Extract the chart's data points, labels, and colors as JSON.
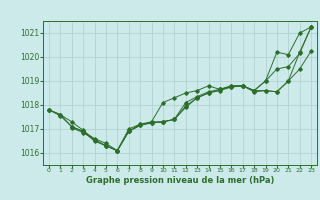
{
  "background_color": "#cceaea",
  "grid_color": "#b0cccc",
  "line_color": "#2d6e2d",
  "title": "Graphe pression niveau de la mer (hPa)",
  "xlim": [
    -0.5,
    23.5
  ],
  "ylim": [
    1015.5,
    1021.5
  ],
  "yticks": [
    1016,
    1017,
    1018,
    1019,
    1020,
    1021
  ],
  "xticks": [
    0,
    1,
    2,
    3,
    4,
    5,
    6,
    7,
    8,
    9,
    10,
    11,
    12,
    13,
    14,
    15,
    16,
    17,
    18,
    19,
    20,
    21,
    22,
    23
  ],
  "series": [
    {
      "x": [
        0,
        1,
        2,
        3,
        4,
        5,
        6,
        7,
        8,
        9,
        10,
        11,
        12,
        13,
        14,
        15,
        16,
        17,
        18,
        19,
        20,
        21,
        22,
        23
      ],
      "y": [
        1017.8,
        1017.55,
        1017.1,
        1016.9,
        1016.5,
        1016.3,
        1016.1,
        1016.9,
        1017.2,
        1017.3,
        1018.1,
        1018.3,
        1018.5,
        1018.6,
        1018.8,
        1018.65,
        1018.8,
        1018.8,
        1018.6,
        1019.0,
        1020.2,
        1020.1,
        1021.0,
        1021.25
      ]
    },
    {
      "x": [
        0,
        1,
        2,
        3,
        4,
        5,
        6,
        7,
        8,
        9,
        10,
        11,
        12,
        13,
        14,
        15,
        16,
        17,
        18,
        19,
        20,
        21,
        22,
        23
      ],
      "y": [
        1017.8,
        1017.6,
        1017.3,
        1016.95,
        1016.55,
        1016.3,
        1016.1,
        1016.9,
        1017.15,
        1017.3,
        1017.3,
        1017.4,
        1018.1,
        1018.35,
        1018.55,
        1018.65,
        1018.8,
        1018.8,
        1018.6,
        1019.0,
        1019.5,
        1019.6,
        1020.15,
        1021.25
      ]
    },
    {
      "x": [
        0,
        1,
        2,
        3,
        4,
        5,
        6,
        7,
        8,
        9,
        10,
        11,
        12,
        13,
        14,
        15,
        16,
        17,
        18,
        19,
        20,
        21,
        22,
        23
      ],
      "y": [
        1017.8,
        1017.6,
        1017.1,
        1016.9,
        1016.6,
        1016.4,
        1016.1,
        1016.9,
        1017.15,
        1017.25,
        1017.3,
        1017.4,
        1017.95,
        1018.3,
        1018.5,
        1018.65,
        1018.75,
        1018.8,
        1018.6,
        1018.6,
        1018.55,
        1019.0,
        1020.2,
        1021.25
      ]
    },
    {
      "x": [
        2,
        3,
        4,
        5,
        6,
        7,
        8,
        9,
        10,
        11,
        12,
        13,
        14,
        15,
        16,
        17,
        18,
        19,
        20,
        21,
        22,
        23
      ],
      "y": [
        1017.05,
        1016.85,
        1016.55,
        1016.3,
        1016.1,
        1017.0,
        1017.2,
        1017.25,
        1017.3,
        1017.4,
        1017.9,
        1018.3,
        1018.5,
        1018.6,
        1018.75,
        1018.8,
        1018.55,
        1018.6,
        1018.55,
        1019.0,
        1019.5,
        1020.25
      ]
    }
  ]
}
